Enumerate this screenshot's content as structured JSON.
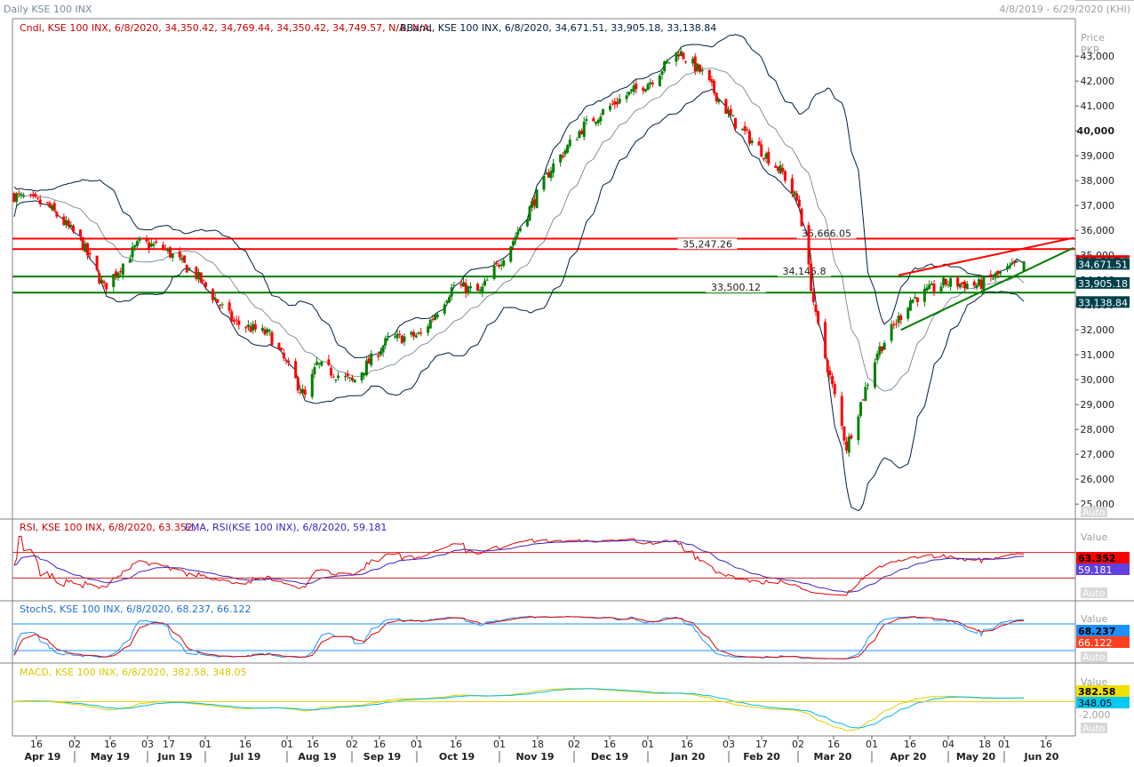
{
  "window": {
    "title": "Daily KSE 100 INX",
    "date_range": "4/8/2019 - 6/29/2020 (KHI)"
  },
  "colors": {
    "up_candle": "#008000",
    "down_candle": "#ff0000",
    "band": "#002040",
    "rsi": "#e00000",
    "rsi_ema": "#4020c0",
    "stoch_k": "#1e90ff",
    "stoch_d": "#e00000",
    "macd": "#e0d000",
    "macd_signal": "#00b8e0",
    "resistance": "#ff0000",
    "support": "#008000"
  },
  "main_panel": {
    "legend_candle": "Cndl, KSE 100 INX, 6/8/2020, 34,350.42, 34,769.44, 34,350.42, 34,749.57, N/A, N/A,",
    "legend_bband": "BBand, KSE 100 INX, 6/8/2020, 34,671.51, 33,905.18, 33,138.84",
    "axis_label_1": "Price",
    "axis_label_2": "PKR",
    "auto_label": "Auto",
    "price_badges": [
      {
        "text": "34,749.57",
        "value": 34749.57,
        "bg": "#e00000",
        "fg": "#ffffff"
      },
      {
        "text": "34,671.51",
        "value": 34671.51,
        "bg": "#00404a",
        "fg": "#ffffff"
      },
      {
        "text": "33,905.18",
        "value": 33905.18,
        "bg": "#00404a",
        "fg": "#ffffff"
      },
      {
        "text": "33,138.84",
        "value": 33138.84,
        "bg": "#00404a",
        "fg": "#ffffff"
      }
    ],
    "horizontal_lines": [
      {
        "label": "35,666.05",
        "value": 35666.05,
        "color": "#ff0000"
      },
      {
        "label": "35,247.26",
        "value": 35247.26,
        "color": "#ff0000"
      },
      {
        "label": "34,145.8",
        "value": 34145.8,
        "color": "#008000"
      },
      {
        "label": "33,500.12",
        "value": 33500.12,
        "color": "#008000"
      }
    ]
  },
  "rsi_panel": {
    "legend_rsi": "RSI, KSE 100 INX, 6/8/2020, 63.352,",
    "legend_ema": "EMA, RSI(KSE 100 INX), 6/8/2020, 59.181",
    "axis_label": "Value",
    "auto_label": "Auto",
    "badges": [
      {
        "text": "63.352",
        "bg": "#ff0000",
        "fg": "#000000"
      },
      {
        "text": "59.181",
        "bg": "#6040e0",
        "fg": "#ffffff"
      }
    ]
  },
  "stoch_panel": {
    "legend": "StochS, KSE 100 INX, 6/8/2020, 68.237, 66.122",
    "axis_label": "Value",
    "auto_label": "Auto",
    "badges": [
      {
        "text": "68.237",
        "bg": "#1e90ff",
        "fg": "#000000"
      },
      {
        "text": "66.122",
        "bg": "#ff4020",
        "fg": "#ffffff"
      }
    ]
  },
  "macd_panel": {
    "legend": "MACD, KSE 100 INX, 6/8/2020, 382.58, 348.05",
    "axis_label": "Value",
    "axis_tick": "-2,000",
    "auto_label": "Auto",
    "badges": [
      {
        "text": "382.58",
        "bg": "#f0e000",
        "fg": "#000000"
      },
      {
        "text": "348.05",
        "bg": "#00c8f0",
        "fg": "#000000"
      }
    ]
  },
  "x_axis": {
    "day_ticks": [
      "16",
      "02",
      "16",
      "03",
      "17",
      "01",
      "16",
      "01",
      "16",
      "02",
      "16",
      "01",
      "16",
      "01",
      "18",
      "02",
      "16",
      "01",
      "16",
      "03",
      "17",
      "02",
      "16",
      "01",
      "16",
      "04",
      "18",
      "01",
      "16"
    ],
    "months": [
      "Apr 19",
      "May 19",
      "Jun 19",
      "Jul 19",
      "Aug 19",
      "Sep 19",
      "Oct 19",
      "Nov 19",
      "Dec 19",
      "Jan 20",
      "Feb 20",
      "Mar 20",
      "Apr 20",
      "May 20",
      "Jun 20"
    ]
  },
  "chart_data": {
    "type": "candlestick",
    "title": "Daily KSE 100 INX",
    "ylabel": "Price PKR",
    "y_ticks": [
      25000,
      26000,
      27000,
      28000,
      29000,
      30000,
      31000,
      32000,
      33000,
      34000,
      35000,
      36000,
      37000,
      38000,
      39000,
      40000,
      41000,
      42000,
      43000
    ],
    "ylim": [
      24400,
      44400
    ],
    "x_range": [
      "2019-04-08",
      "2020-06-29"
    ],
    "last_candle": {
      "date": "6/8/2020",
      "open": 34350.42,
      "high": 34769.44,
      "low": 34350.42,
      "close": 34749.57
    },
    "bollinger_last": {
      "upper": 34671.51,
      "middle": 33905.18,
      "lower": 33138.84
    },
    "close_path": [
      {
        "date": "2019-04-08",
        "close": 37400
      },
      {
        "date": "2019-04-22",
        "close": 37000
      },
      {
        "date": "2019-05-06",
        "close": 35600
      },
      {
        "date": "2019-05-16",
        "close": 33700
      },
      {
        "date": "2019-05-31",
        "close": 35500
      },
      {
        "date": "2019-06-10",
        "close": 35300
      },
      {
        "date": "2019-06-24",
        "close": 34200
      },
      {
        "date": "2019-07-10",
        "close": 32300
      },
      {
        "date": "2019-07-25",
        "close": 31800
      },
      {
        "date": "2019-08-09",
        "close": 29300
      },
      {
        "date": "2019-08-14",
        "close": 30600
      },
      {
        "date": "2019-08-29",
        "close": 29900
      },
      {
        "date": "2019-09-13",
        "close": 31600
      },
      {
        "date": "2019-09-27",
        "close": 31800
      },
      {
        "date": "2019-10-11",
        "close": 33800
      },
      {
        "date": "2019-10-22",
        "close": 33500
      },
      {
        "date": "2019-11-05",
        "close": 35600
      },
      {
        "date": "2019-11-21",
        "close": 38500
      },
      {
        "date": "2019-12-05",
        "close": 40200
      },
      {
        "date": "2019-12-19",
        "close": 41200
      },
      {
        "date": "2020-01-02",
        "close": 42000
      },
      {
        "date": "2020-01-14",
        "close": 43200
      },
      {
        "date": "2020-01-24",
        "close": 42300
      },
      {
        "date": "2020-02-06",
        "close": 40400
      },
      {
        "date": "2020-02-20",
        "close": 39000
      },
      {
        "date": "2020-02-27",
        "close": 38300
      },
      {
        "date": "2020-03-05",
        "close": 37000
      },
      {
        "date": "2020-03-12",
        "close": 32500
      },
      {
        "date": "2020-03-25",
        "close": 27300
      },
      {
        "date": "2020-04-07",
        "close": 31100
      },
      {
        "date": "2020-04-21",
        "close": 33200
      },
      {
        "date": "2020-05-06",
        "close": 33900
      },
      {
        "date": "2020-05-20",
        "close": 33800
      },
      {
        "date": "2020-06-08",
        "close": 34749.57
      }
    ],
    "trendlines": [
      {
        "name": "resistance",
        "color": "#ff0000",
        "from": {
          "date": "2020-04-16",
          "value": 34200
        },
        "to": {
          "date": "2020-06-29",
          "value": 35700
        }
      },
      {
        "name": "support",
        "color": "#008000",
        "from": {
          "date": "2020-04-17",
          "value": 32000
        },
        "to": {
          "date": "2020-06-29",
          "value": 35300
        }
      }
    ],
    "rsi_levels": [
      70,
      30
    ],
    "stoch_levels": [
      80,
      20
    ],
    "macd_zero": 0,
    "grid": false
  }
}
